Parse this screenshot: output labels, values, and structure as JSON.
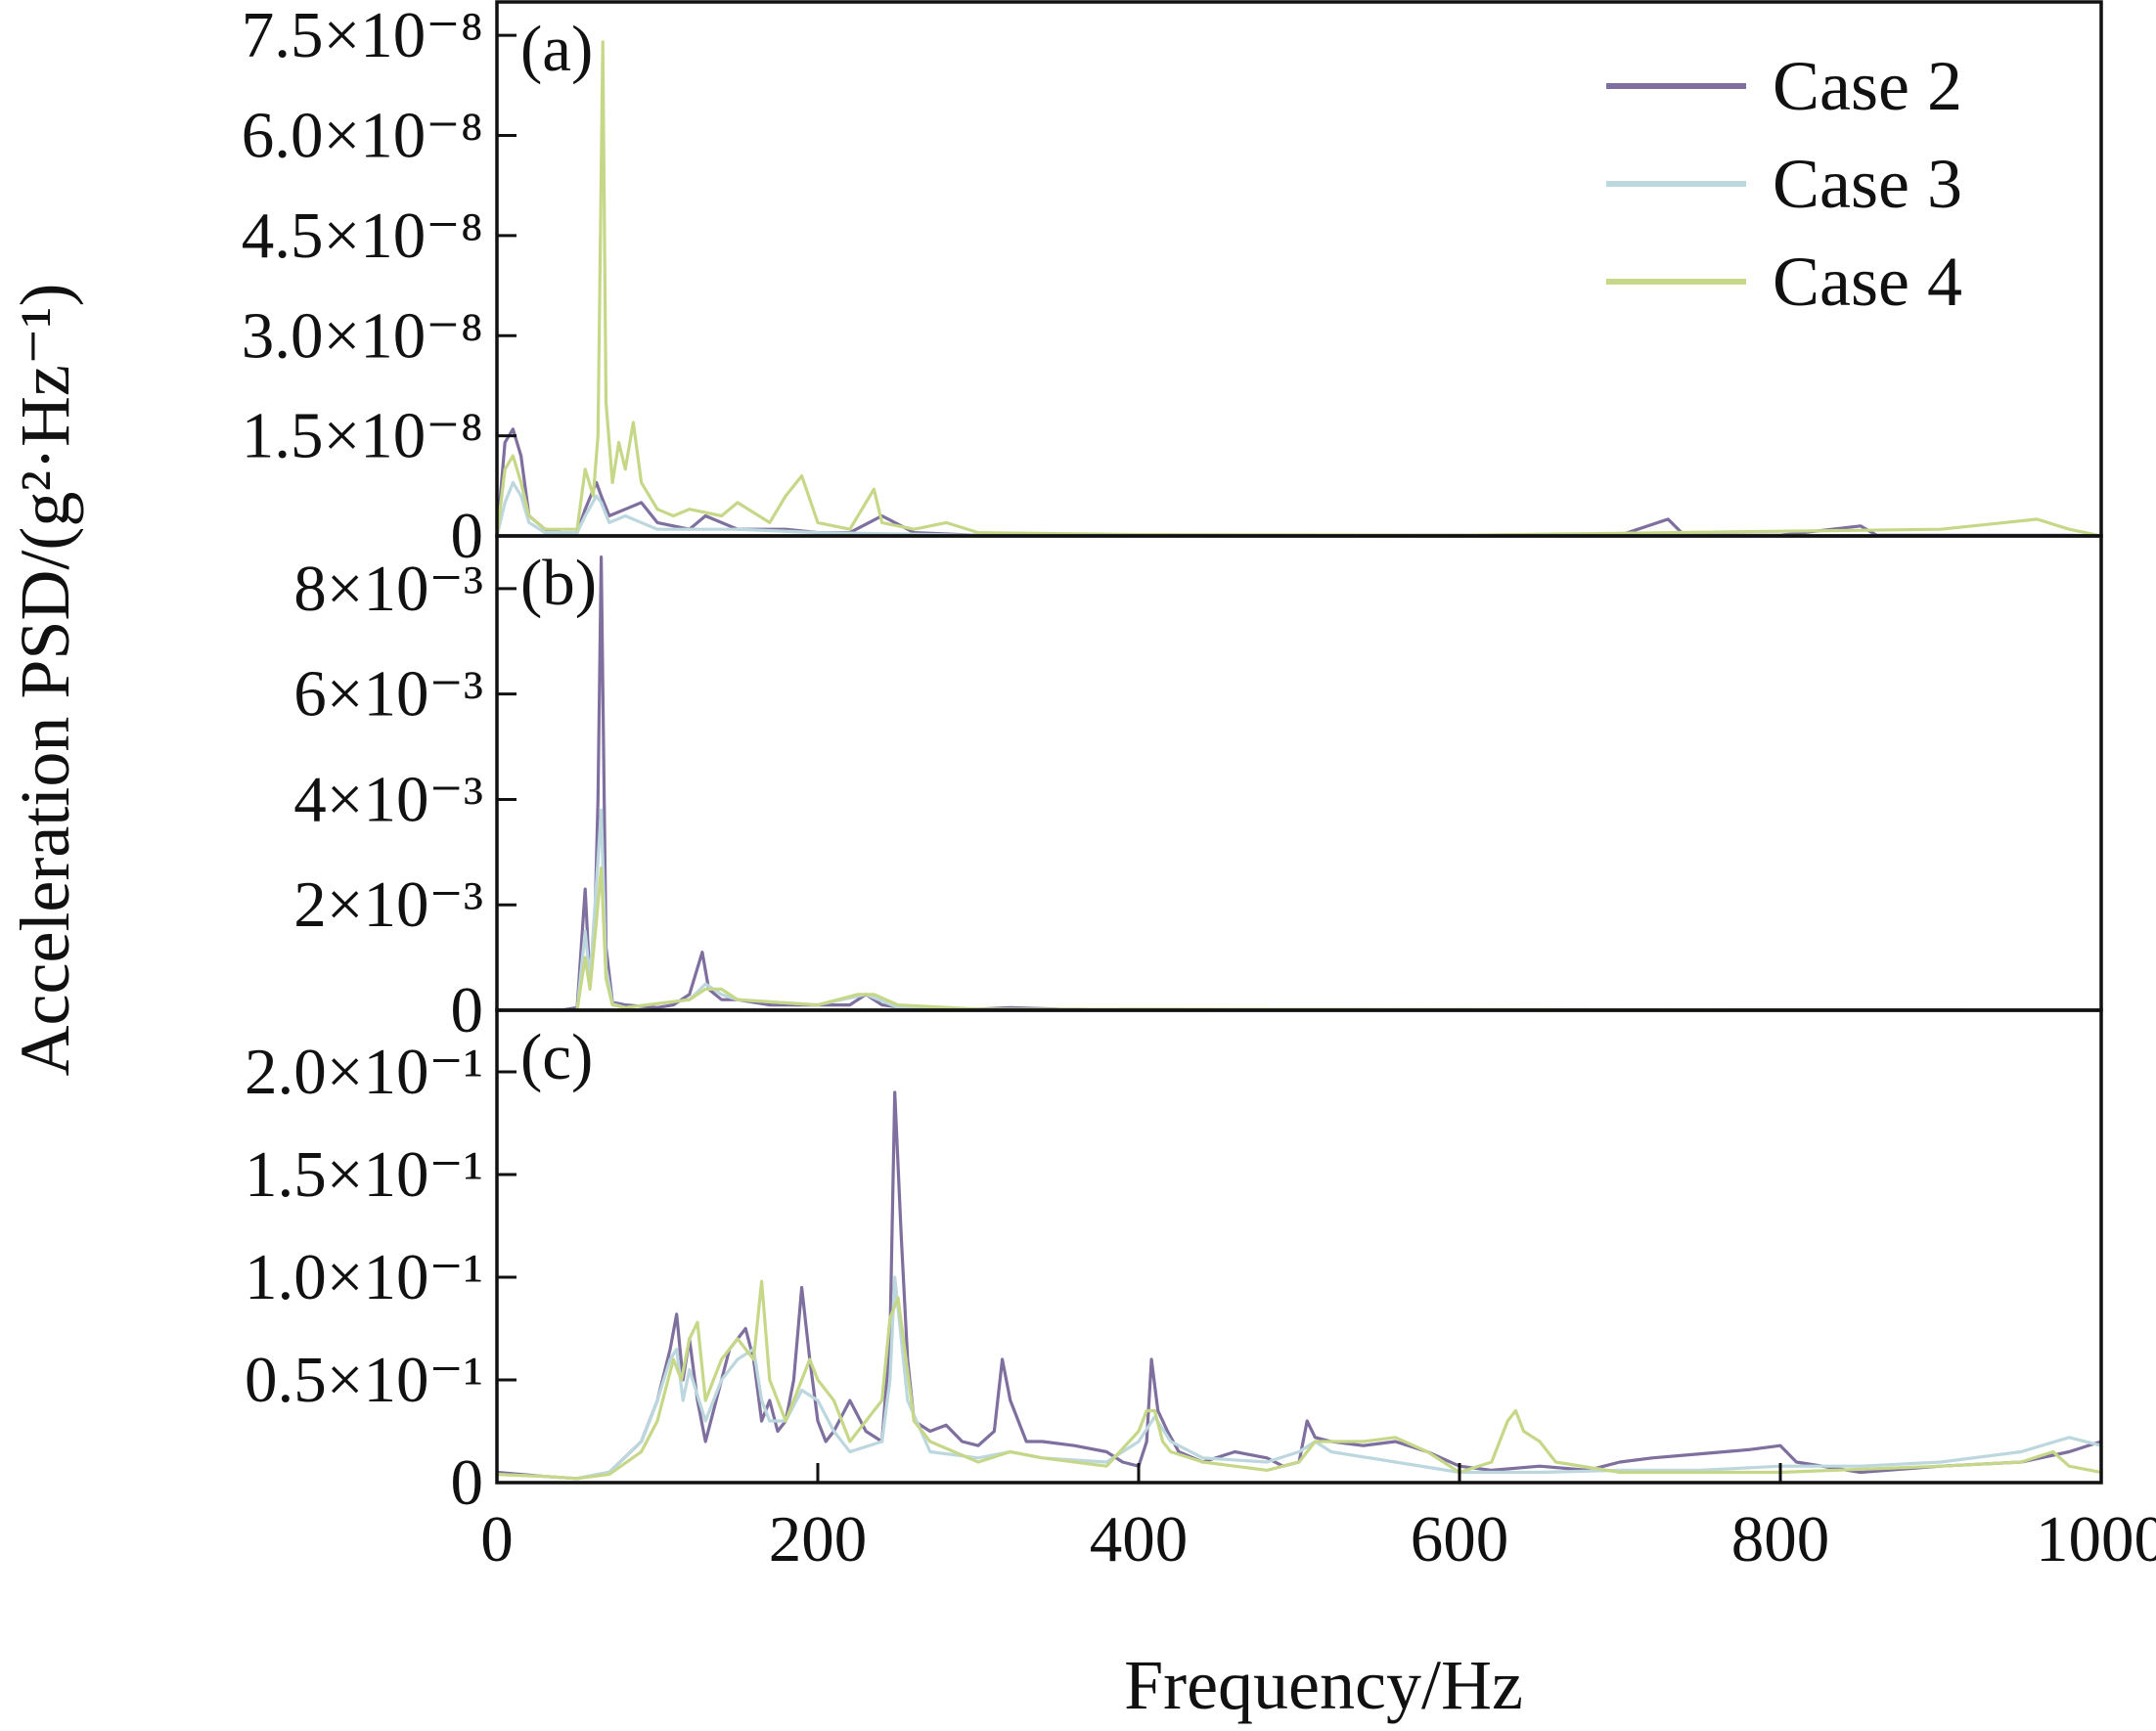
{
  "colors": {
    "case2": "#7e6f9e",
    "case3": "#bcd7de",
    "case4": "#c6d888",
    "frame": "#111111"
  },
  "chart_data": {
    "type": "line",
    "xlabel": "Frequency/Hz",
    "ylabel": "Acceleration PSD/(g²·Hz⁻¹)",
    "xlim": [
      0,
      1000
    ],
    "xticks": [
      0,
      200,
      400,
      600,
      800,
      1000
    ],
    "x_tick_labels": [
      "0",
      "200",
      "400",
      "600",
      "800",
      "1000"
    ],
    "grid": false,
    "legend": {
      "placement": "top-right",
      "entries": [
        "Case 2",
        "Case 3",
        "Case 4"
      ]
    },
    "panels": [
      {
        "label": "(a)",
        "ylim": [
          0,
          8e-08
        ],
        "yticks": [
          0,
          1.5e-08,
          3e-08,
          4.5e-08,
          6e-08,
          7.5e-08
        ],
        "ytick_labels": [
          "0",
          "1.5×10⁻⁸",
          "3.0×10⁻⁸",
          "4.5×10⁻⁸",
          "6.0×10⁻⁸",
          "7.5×10⁻⁸"
        ],
        "series": [
          {
            "name": "Case 2",
            "x": [
              0,
              5,
              10,
              15,
              20,
              30,
              40,
              50,
              55,
              62,
              65,
              70,
              80,
              90,
              100,
              120,
              130,
              150,
              180,
              200,
              220,
              240,
              260,
              300,
              400,
              600,
              700,
              730,
              740,
              800,
              850,
              860,
              900,
              980,
              1000
            ],
            "y": [
              0,
              1.4e-08,
              1.6e-08,
              1.2e-08,
              3e-09,
              1e-09,
              5e-10,
              5e-10,
              4e-09,
              8e-09,
              6e-09,
              3e-09,
              4e-09,
              5e-09,
              2e-09,
              1e-09,
              3e-09,
              1e-09,
              1e-09,
              5e-10,
              5e-10,
              3e-09,
              5e-10,
              1e-10,
              1e-10,
              1e-10,
              1e-10,
              2.5e-09,
              1e-10,
              1e-10,
              1.5e-09,
              1e-10,
              1e-10,
              1e-10,
              0
            ]
          },
          {
            "name": "Case 3",
            "x": [
              0,
              5,
              10,
              15,
              20,
              30,
              50,
              55,
              62,
              65,
              70,
              80,
              90,
              100,
              150,
              200,
              300,
              500,
              1000
            ],
            "y": [
              0,
              5e-09,
              8e-09,
              6e-09,
              2e-09,
              5e-10,
              5e-10,
              3e-09,
              6e-09,
              5e-09,
              2e-09,
              3e-09,
              2e-09,
              1e-09,
              1e-09,
              5e-10,
              1e-10,
              1e-10,
              0
            ]
          },
          {
            "name": "Case 4",
            "x": [
              0,
              5,
              10,
              15,
              20,
              30,
              50,
              55,
              60,
              63,
              66,
              68,
              72,
              76,
              80,
              85,
              90,
              100,
              110,
              120,
              140,
              150,
              170,
              180,
              190,
              200,
              220,
              235,
              240,
              260,
              280,
              300,
              400,
              600,
              900,
              960,
              980,
              1000
            ],
            "y": [
              0,
              1e-08,
              1.2e-08,
              8e-09,
              3e-09,
              1e-09,
              1e-09,
              1e-08,
              6e-09,
              1.5e-08,
              7.4e-08,
              2e-08,
              8e-09,
              1.4e-08,
              1e-08,
              1.7e-08,
              8e-09,
              4e-09,
              3e-09,
              4e-09,
              3e-09,
              5e-09,
              2e-09,
              6e-09,
              9e-09,
              2e-09,
              1e-09,
              7e-09,
              2e-09,
              1e-09,
              2e-09,
              5e-10,
              2e-10,
              1e-10,
              1e-09,
              2.5e-09,
              1e-09,
              0
            ]
          }
        ]
      },
      {
        "label": "(b)",
        "ylim": [
          0,
          0.009
        ],
        "yticks": [
          0,
          0.002,
          0.004,
          0.006,
          0.008
        ],
        "ytick_labels": [
          "0",
          "2×10⁻³",
          "4×10⁻³",
          "6×10⁻³",
          "8×10⁻³"
        ],
        "series": [
          {
            "name": "Case 2",
            "x": [
              0,
              40,
              50,
              55,
              58,
              61,
              63,
              65,
              68,
              72,
              80,
              100,
              110,
              120,
              128,
              132,
              140,
              150,
              170,
              200,
              220,
              230,
              240,
              260,
              300,
              320,
              350,
              400,
              1000
            ],
            "y": [
              0,
              0,
              5e-05,
              0.0023,
              0.0005,
              0.0016,
              0.004,
              0.0086,
              0.0012,
              0.00015,
              0.0001,
              5e-05,
              0.0001,
              0.0003,
              0.0011,
              0.0004,
              0.0002,
              0.0002,
              0.0001,
              0.0001,
              0.0001,
              0.0003,
              0.0001,
              2e-05,
              2e-05,
              5e-05,
              2e-05,
              1e-05,
              0
            ]
          },
          {
            "name": "Case 3",
            "x": [
              0,
              50,
              55,
              58,
              62,
              65,
              68,
              72,
              80,
              120,
              130,
              140,
              150,
              200,
              230,
              250,
              300,
              1000
            ],
            "y": [
              0,
              0,
              0.0015,
              0.0006,
              0.0024,
              0.0038,
              0.0008,
              0.00012,
              5e-05,
              0.0002,
              0.0005,
              0.0003,
              0.0002,
              0.0001,
              0.0003,
              5e-05,
              2e-05,
              0
            ]
          },
          {
            "name": "Case 4",
            "x": [
              0,
              50,
              55,
              58,
              62,
              65,
              68,
              72,
              80,
              120,
              130,
              140,
              150,
              200,
              225,
              235,
              250,
              300,
              1000
            ],
            "y": [
              0,
              0,
              0.001,
              0.0004,
              0.0017,
              0.0027,
              0.0006,
              0.0001,
              5e-05,
              0.0002,
              0.0004,
              0.0004,
              0.0002,
              0.0001,
              0.0003,
              0.0003,
              0.0001,
              2e-05,
              0
            ]
          }
        ]
      },
      {
        "label": "(c)",
        "ylim": [
          0,
          0.23
        ],
        "yticks": [
          0,
          0.05,
          0.1,
          0.15,
          0.2
        ],
        "ytick_labels": [
          "0",
          "0.5×10⁻¹",
          "1.0×10⁻¹",
          "1.5×10⁻¹",
          "2.0×10⁻¹"
        ],
        "series": [
          {
            "name": "Case 2",
            "x": [
              0,
              30,
              50,
              70,
              90,
              100,
              108,
              112,
              116,
              120,
              125,
              130,
              140,
              145,
              150,
              155,
              160,
              165,
              170,
              175,
              180,
              185,
              190,
              195,
              200,
              205,
              210,
              220,
              230,
              240,
              245,
              248,
              252,
              256,
              260,
              270,
              280,
              290,
              300,
              310,
              315,
              320,
              325,
              330,
              340,
              360,
              380,
              390,
              400,
              405,
              408,
              412,
              418,
              425,
              440,
              460,
              480,
              490,
              500,
              505,
              510,
              520,
              540,
              560,
              580,
              600,
              620,
              650,
              680,
              700,
              720,
              750,
              780,
              800,
              810,
              850,
              900,
              950,
              980,
              1000
            ],
            "y": [
              0.005,
              0.003,
              0.002,
              0.005,
              0.02,
              0.04,
              0.065,
              0.082,
              0.05,
              0.07,
              0.04,
              0.02,
              0.05,
              0.065,
              0.07,
              0.075,
              0.06,
              0.03,
              0.04,
              0.025,
              0.03,
              0.05,
              0.095,
              0.06,
              0.03,
              0.02,
              0.025,
              0.04,
              0.025,
              0.02,
              0.07,
              0.19,
              0.12,
              0.06,
              0.03,
              0.025,
              0.028,
              0.02,
              0.018,
              0.025,
              0.06,
              0.04,
              0.03,
              0.02,
              0.02,
              0.018,
              0.015,
              0.01,
              0.008,
              0.02,
              0.06,
              0.035,
              0.025,
              0.015,
              0.01,
              0.015,
              0.012,
              0.008,
              0.01,
              0.03,
              0.022,
              0.02,
              0.018,
              0.02,
              0.015,
              0.008,
              0.006,
              0.008,
              0.006,
              0.01,
              0.012,
              0.014,
              0.016,
              0.018,
              0.01,
              0.005,
              0.008,
              0.01,
              0.015,
              0.02
            ]
          },
          {
            "name": "Case 3",
            "x": [
              0,
              30,
              50,
              70,
              90,
              100,
              108,
              112,
              116,
              120,
              130,
              140,
              150,
              160,
              165,
              170,
              180,
              190,
              200,
              210,
              220,
              240,
              245,
              248,
              252,
              256,
              270,
              300,
              320,
              340,
              380,
              400,
              410,
              420,
              440,
              480,
              500,
              510,
              520,
              560,
              600,
              650,
              700,
              750,
              800,
              850,
              900,
              950,
              980,
              1000
            ],
            "y": [
              0.004,
              0.003,
              0.002,
              0.005,
              0.02,
              0.04,
              0.06,
              0.065,
              0.04,
              0.055,
              0.03,
              0.05,
              0.06,
              0.065,
              0.04,
              0.03,
              0.03,
              0.045,
              0.04,
              0.025,
              0.015,
              0.02,
              0.05,
              0.1,
              0.07,
              0.04,
              0.015,
              0.012,
              0.015,
              0.012,
              0.01,
              0.02,
              0.032,
              0.02,
              0.012,
              0.01,
              0.015,
              0.02,
              0.015,
              0.01,
              0.005,
              0.005,
              0.006,
              0.006,
              0.008,
              0.008,
              0.01,
              0.015,
              0.022,
              0.018
            ]
          },
          {
            "name": "Case 4",
            "x": [
              0,
              30,
              50,
              70,
              90,
              100,
              110,
              115,
              120,
              125,
              130,
              140,
              150,
              155,
              160,
              165,
              170,
              175,
              180,
              190,
              195,
              200,
              210,
              220,
              230,
              240,
              245,
              250,
              255,
              260,
              270,
              300,
              320,
              340,
              380,
              400,
              405,
              410,
              415,
              420,
              440,
              460,
              480,
              500,
              510,
              520,
              540,
              560,
              580,
              600,
              620,
              630,
              635,
              640,
              650,
              660,
              700,
              800,
              900,
              950,
              970,
              980,
              1000
            ],
            "y": [
              0.004,
              0.003,
              0.002,
              0.004,
              0.015,
              0.03,
              0.06,
              0.05,
              0.07,
              0.078,
              0.04,
              0.06,
              0.07,
              0.065,
              0.06,
              0.098,
              0.05,
              0.04,
              0.03,
              0.05,
              0.06,
              0.05,
              0.04,
              0.02,
              0.03,
              0.04,
              0.08,
              0.09,
              0.06,
              0.03,
              0.02,
              0.01,
              0.015,
              0.012,
              0.008,
              0.025,
              0.035,
              0.035,
              0.02,
              0.015,
              0.01,
              0.008,
              0.006,
              0.01,
              0.02,
              0.02,
              0.02,
              0.022,
              0.015,
              0.005,
              0.01,
              0.03,
              0.035,
              0.025,
              0.02,
              0.01,
              0.005,
              0.005,
              0.008,
              0.01,
              0.015,
              0.008,
              0.005
            ]
          }
        ]
      }
    ]
  }
}
